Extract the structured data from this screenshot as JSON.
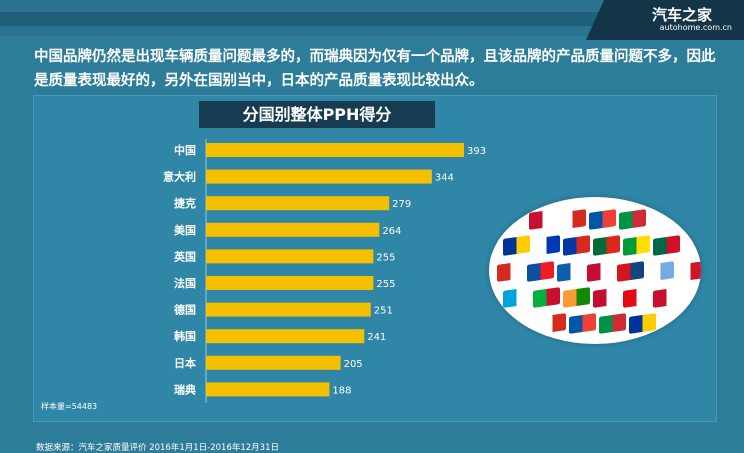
{
  "header": {
    "logo_main": "汽车之家",
    "logo_sub": "autohome.com.cn"
  },
  "intro_text": "中国品牌仍然是出现车辆质量问题最多的，而瑞典因为仅有一个品牌，且该品牌的产品质量问题不多，因此是质量表现最好的，另外在国别当中，日本的产品质量表现比较出众。",
  "sample_note": "样本量=54483",
  "source_note": "数据来源：汽车之家质量评价 2016年1月1日-2016年12月31日",
  "flags_icon": "world-flags-collage-icon",
  "colors": {
    "bar": "#f5c000",
    "background": "#2d7d9a",
    "title_box": "#173c51"
  },
  "chart_data": {
    "type": "bar",
    "orientation": "horizontal",
    "title": "分国别整体PPH得分",
    "categories": [
      "中国",
      "意大利",
      "捷克",
      "美国",
      "英国",
      "法国",
      "德国",
      "韩国",
      "日本",
      "瑞典"
    ],
    "values": [
      393,
      344,
      279,
      264,
      255,
      255,
      251,
      241,
      205,
      188
    ],
    "xlim": [
      0,
      393
    ],
    "grid": false,
    "legend": "none"
  }
}
